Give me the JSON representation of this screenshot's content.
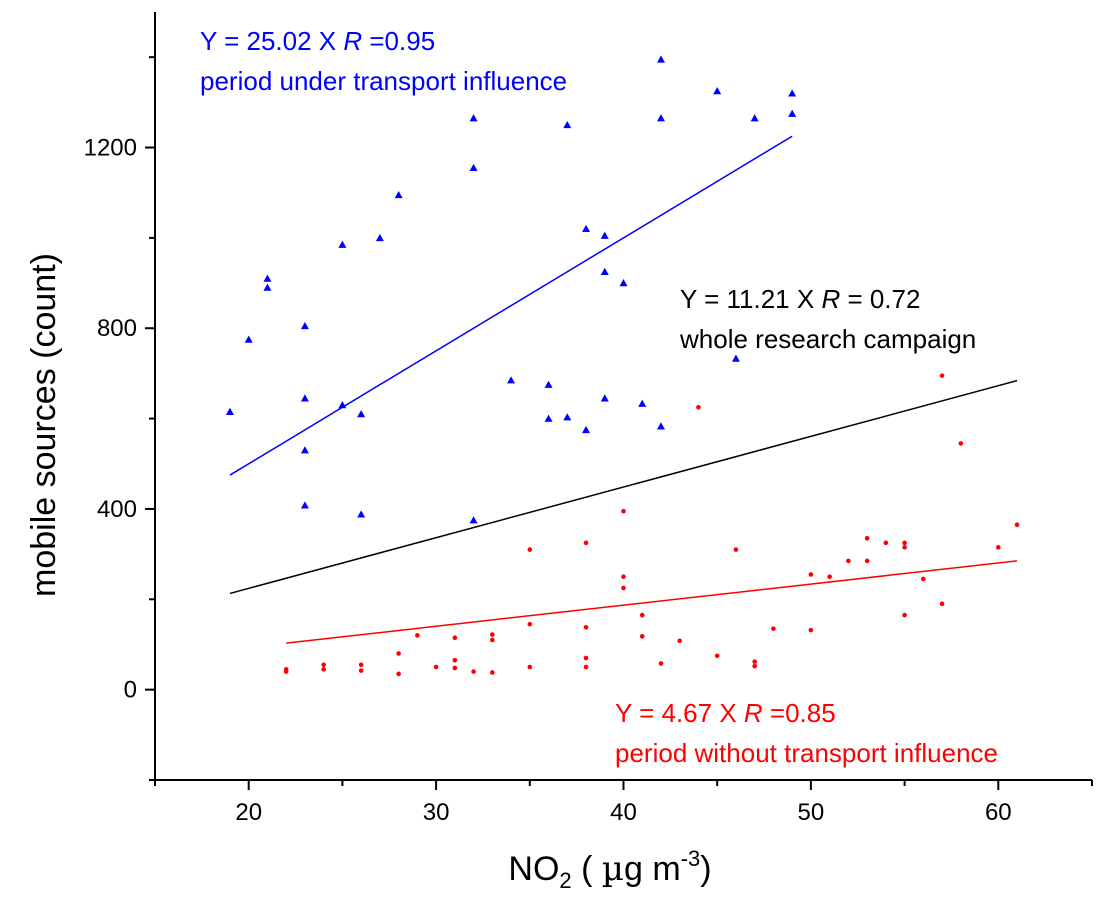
{
  "chart_data": {
    "type": "scatter",
    "title": "",
    "xlabel": "NO",
    "xlabel_sub": "2",
    "xlabel_unit_pre": " ( ",
    "xlabel_mu": "µ",
    "xlabel_unit_mid": "g m",
    "xlabel_sup": "-3",
    "xlabel_close": ")",
    "ylabel": "mobile sources (count)",
    "xlim": [
      15,
      65
    ],
    "ylim": [
      -200,
      1500
    ],
    "x_ticks": [
      20,
      30,
      40,
      50,
      60
    ],
    "y_ticks": [
      0,
      400,
      800,
      1200
    ],
    "grid": false,
    "series": [
      {
        "marker": "triangle",
        "color": "#0000ff",
        "points": [
          [
            19,
            615
          ],
          [
            20,
            775
          ],
          [
            21,
            910
          ],
          [
            21,
            890
          ],
          [
            23,
            805
          ],
          [
            23,
            645
          ],
          [
            23,
            530
          ],
          [
            23,
            408
          ],
          [
            25,
            985
          ],
          [
            25,
            630
          ],
          [
            26,
            610
          ],
          [
            26,
            388
          ],
          [
            27,
            1000
          ],
          [
            28,
            1095
          ],
          [
            32,
            1265
          ],
          [
            32,
            1155
          ],
          [
            32,
            375
          ],
          [
            34,
            685
          ],
          [
            36,
            675
          ],
          [
            36,
            600
          ],
          [
            37,
            1250
          ],
          [
            37,
            603
          ],
          [
            38,
            1020
          ],
          [
            38,
            575
          ],
          [
            39,
            1005
          ],
          [
            39,
            925
          ],
          [
            39,
            645
          ],
          [
            40,
            900
          ],
          [
            41,
            633
          ],
          [
            42,
            1395
          ],
          [
            42,
            1265
          ],
          [
            42,
            583
          ],
          [
            45,
            1325
          ],
          [
            46,
            733
          ],
          [
            47,
            1265
          ],
          [
            49,
            1320
          ],
          [
            49,
            1275
          ]
        ],
        "fit": {
          "x": [
            19,
            49
          ],
          "y": [
            475,
            1225
          ]
        }
      },
      {
        "marker": "dot",
        "color": "#ff0000",
        "points": [
          [
            22,
            45
          ],
          [
            22,
            40
          ],
          [
            24,
            55
          ],
          [
            24,
            45
          ],
          [
            26,
            55
          ],
          [
            26,
            42
          ],
          [
            28,
            80
          ],
          [
            28,
            35
          ],
          [
            29,
            120
          ],
          [
            30,
            50
          ],
          [
            31,
            115
          ],
          [
            31,
            65
          ],
          [
            31,
            48
          ],
          [
            32,
            40
          ],
          [
            33,
            122
          ],
          [
            33,
            110
          ],
          [
            33,
            38
          ],
          [
            35,
            310
          ],
          [
            35,
            145
          ],
          [
            35,
            50
          ],
          [
            38,
            325
          ],
          [
            38,
            138
          ],
          [
            38,
            70
          ],
          [
            38,
            50
          ],
          [
            40,
            395
          ],
          [
            40,
            250
          ],
          [
            40,
            225
          ],
          [
            41,
            165
          ],
          [
            41,
            118
          ],
          [
            42,
            58
          ],
          [
            43,
            108
          ],
          [
            44,
            625
          ],
          [
            45,
            75
          ],
          [
            46,
            310
          ],
          [
            47,
            62
          ],
          [
            47,
            52
          ],
          [
            48,
            135
          ],
          [
            50,
            255
          ],
          [
            50,
            132
          ],
          [
            51,
            250
          ],
          [
            52,
            285
          ],
          [
            53,
            335
          ],
          [
            53,
            285
          ],
          [
            54,
            325
          ],
          [
            55,
            325
          ],
          [
            55,
            315
          ],
          [
            55,
            165
          ],
          [
            56,
            245
          ],
          [
            57,
            695
          ],
          [
            57,
            190
          ],
          [
            58,
            545
          ],
          [
            60,
            315
          ],
          [
            61,
            365
          ]
        ],
        "fit": {
          "x": [
            22,
            61
          ],
          "y": [
            103,
            285
          ]
        }
      },
      {
        "marker": "none",
        "color": "#000000",
        "points": [],
        "fit": {
          "x": [
            19,
            61
          ],
          "y": [
            213,
            684
          ]
        }
      }
    ],
    "annotations": {
      "blue_eq_pre": "Y = 25.02 X  ",
      "blue_r": "R",
      "blue_eq_post": " =0.95",
      "blue_desc": "period under transport influence",
      "black_eq_pre": "Y = 11.21 X   ",
      "black_r": "R",
      "black_eq_post": " = 0.72",
      "black_desc": "whole research campaign",
      "red_eq_pre": "Y = 4.67 X  ",
      "red_r": "R",
      "red_eq_post": " =0.85",
      "red_desc": "period without transport influence",
      "blue_color": "#0000ff",
      "black_color": "#000000",
      "red_color": "#ff0000"
    }
  }
}
